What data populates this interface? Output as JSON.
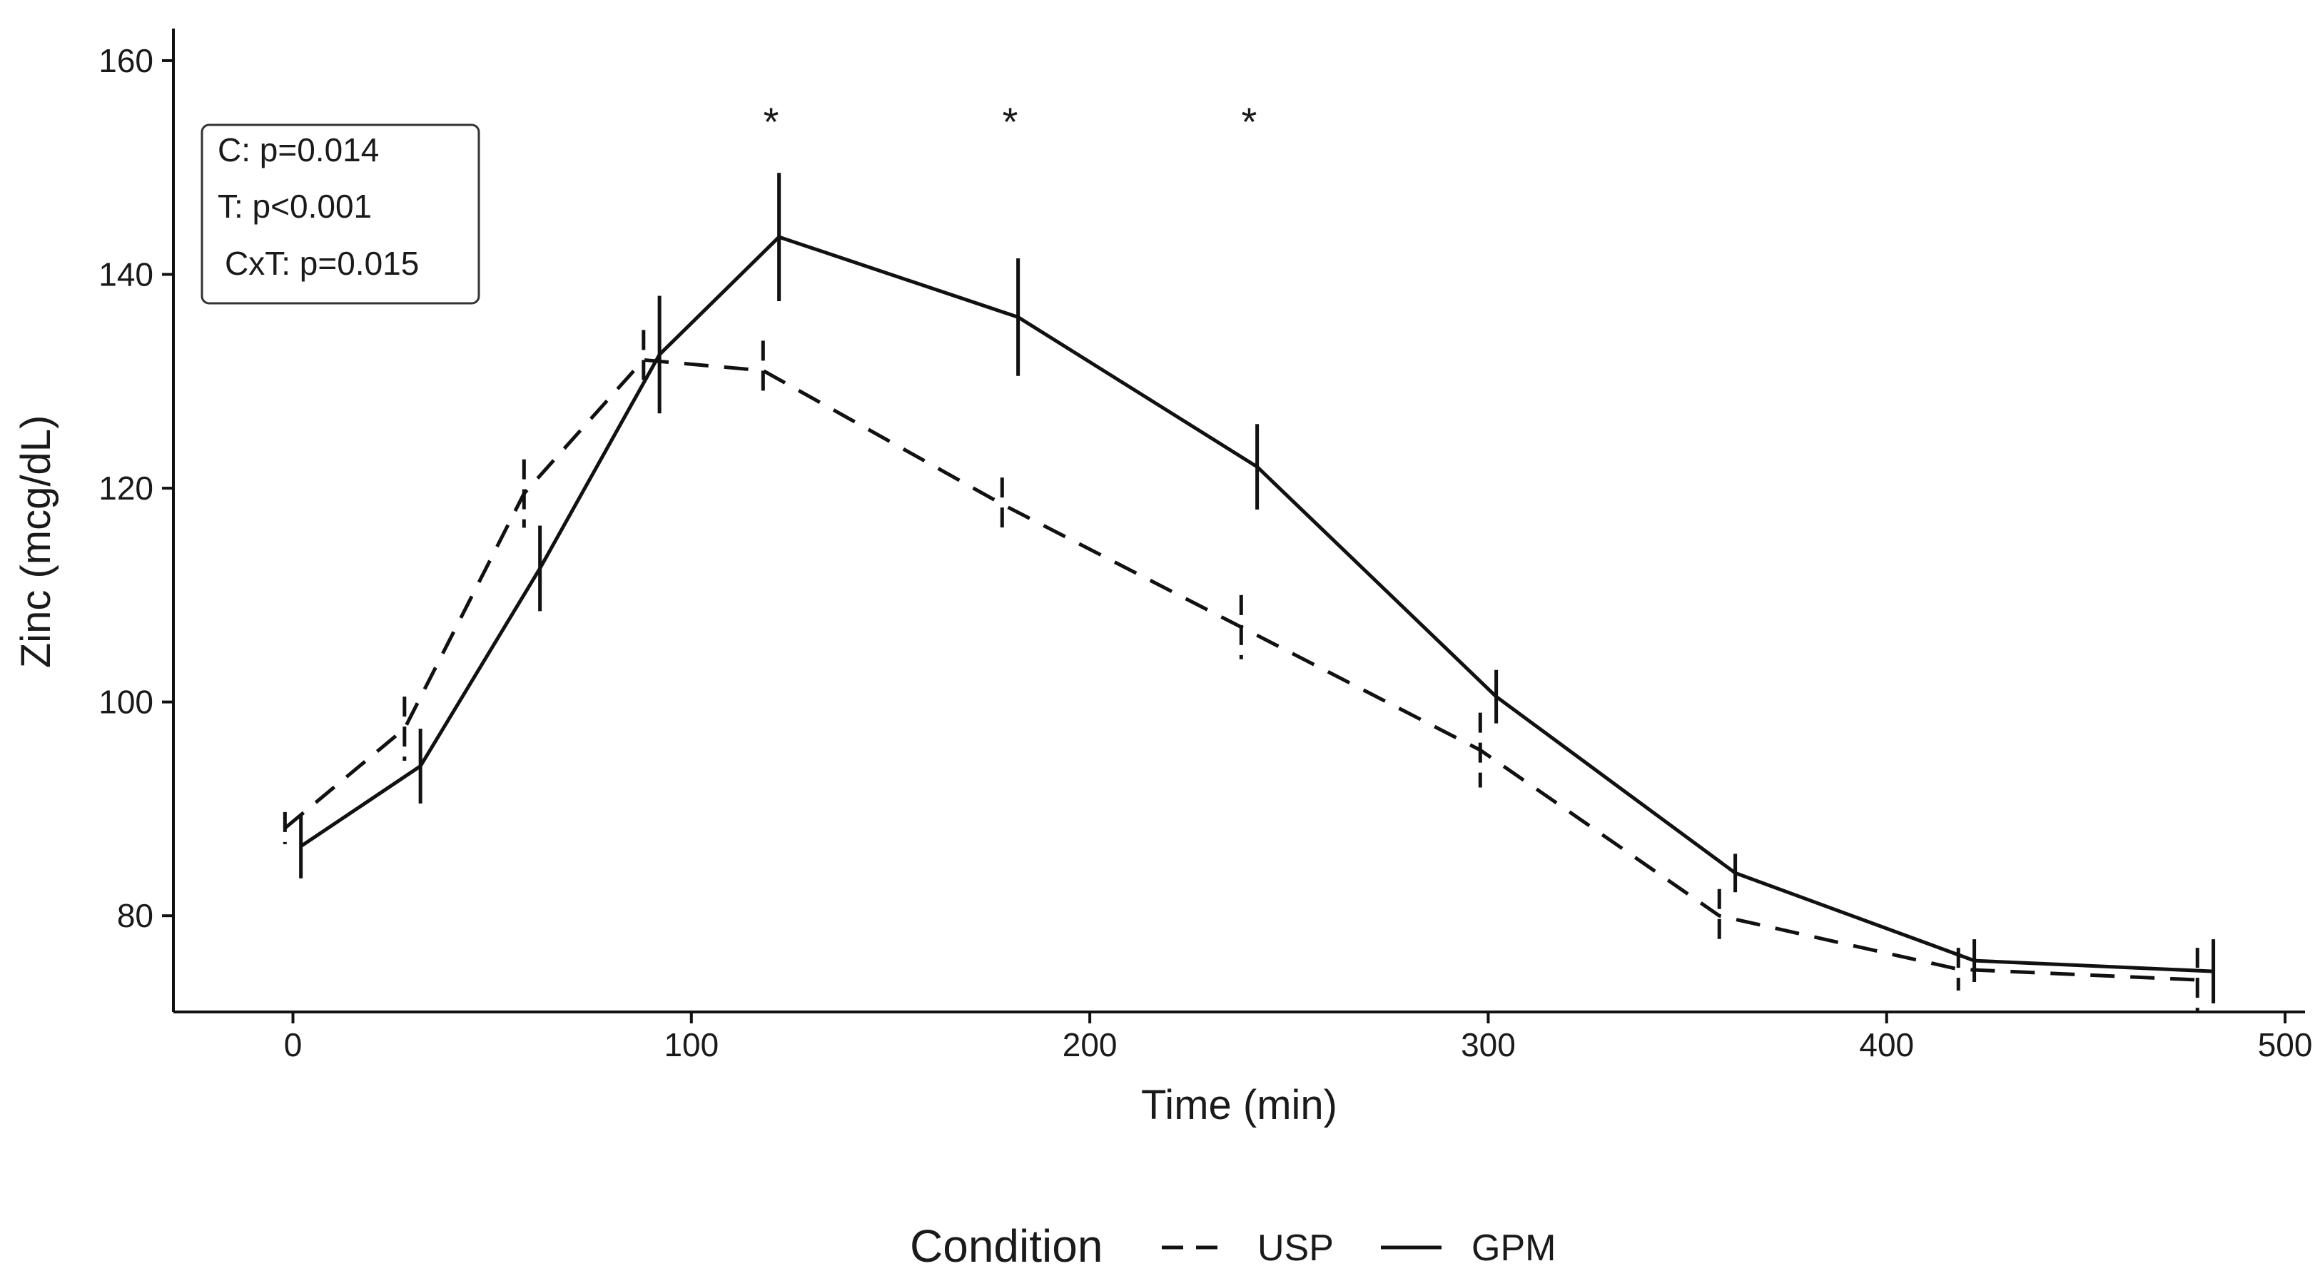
{
  "chart_data": {
    "type": "line",
    "title": "",
    "xlabel": "Time (min)",
    "ylabel": "Zinc (mcg/dL)",
    "xlim": [
      -30,
      505
    ],
    "ylim": [
      71,
      163
    ],
    "xticks": [
      0,
      100,
      200,
      300,
      400,
      500
    ],
    "yticks": [
      80,
      100,
      120,
      140,
      160
    ],
    "grid": false,
    "series": [
      {
        "name": "USP",
        "style": "dashed",
        "x": [
          -2,
          28,
          58,
          88,
          118,
          178,
          238,
          298,
          358,
          418,
          478
        ],
        "y": [
          88.2,
          97.5,
          119.5,
          132,
          131,
          118.5,
          107,
          95.5,
          80,
          75,
          74
        ],
        "err": [
          1.5,
          3,
          3.2,
          2.8,
          2.8,
          2.5,
          3,
          3.5,
          2.5,
          2,
          3
        ]
      },
      {
        "name": "GPM",
        "style": "solid",
        "x": [
          2,
          32,
          62,
          92,
          122,
          182,
          242,
          302,
          362,
          422,
          482
        ],
        "y": [
          86.5,
          94,
          112.5,
          132.5,
          143.5,
          136,
          122,
          100.5,
          84,
          75.8,
          74.8
        ],
        "err": [
          3,
          3.5,
          4,
          5.5,
          6,
          5.5,
          4,
          2.5,
          1.8,
          2,
          3
        ]
      }
    ],
    "significance_markers": [
      {
        "x": 120,
        "label": "*"
      },
      {
        "x": 180,
        "label": "*"
      },
      {
        "x": 240,
        "label": "*"
      }
    ],
    "stats_box": [
      "C: p=0.014",
      "T: p<0.001",
      "CxT: p=0.015"
    ],
    "legend": {
      "title": "Condition",
      "position": "bottom",
      "entries": [
        "USP",
        "GPM"
      ]
    }
  }
}
